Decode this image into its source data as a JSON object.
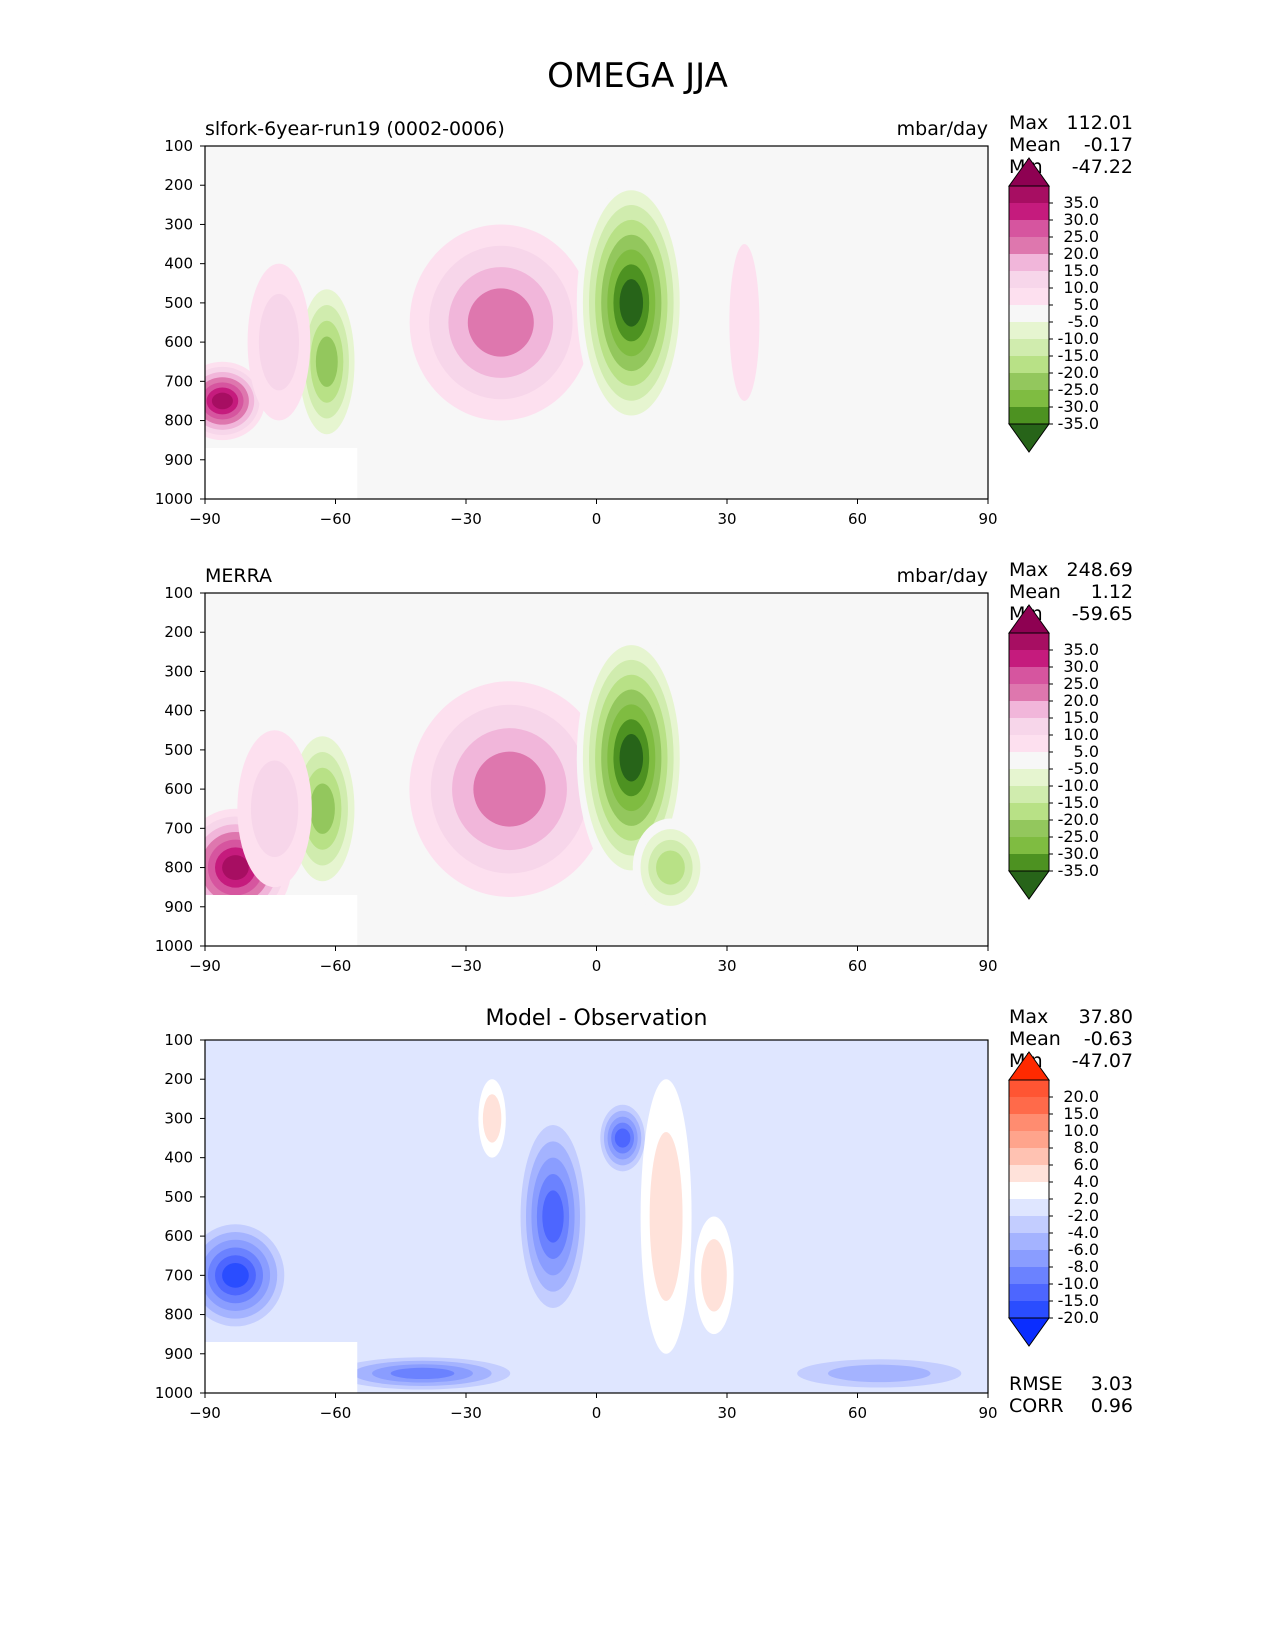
{
  "figure_title": "OMEGA JJA",
  "chart_data": [
    {
      "type": "heatmap",
      "title": "slfork-6year-run19 (0002-0006)",
      "units": "mbar/day",
      "xlim": [
        -90,
        90
      ],
      "ylim": [
        1000,
        100
      ],
      "x_ticks": [
        "−90",
        "−60",
        "−30",
        "0",
        "30",
        "60",
        "90"
      ],
      "y_ticks": [
        "100",
        "200",
        "300",
        "400",
        "500",
        "600",
        "700",
        "800",
        "900",
        "1000"
      ],
      "stats": [
        {
          "label": "Max",
          "value": "112.01"
        },
        {
          "label": "Mean",
          "value": "-0.17"
        },
        {
          "label": "Min",
          "value": "-47.22"
        }
      ],
      "colorbar": {
        "labels": [
          "35.0",
          "30.0",
          "25.0",
          "20.0",
          "15.0",
          "10.0",
          "5.0",
          "-5.0",
          "-10.0",
          "-15.0",
          "-20.0",
          "-25.0",
          "-30.0",
          "-35.0"
        ],
        "colors": [
          "#8e0152",
          "#a70e62",
          "#c51b7d",
          "#d6559f",
          "#de77ae",
          "#f1b6da",
          "#f7d6ea",
          "#fde0ef",
          "#f7f7f7",
          "#e6f5d0",
          "#d0ecae",
          "#b8e186",
          "#93c75d",
          "#7fbc41",
          "#4d9221",
          "#276419"
        ]
      },
      "features": [
        {
          "lat": -22,
          "p": 550,
          "w": 10,
          "h": 500,
          "value": 20
        },
        {
          "lat": 8,
          "p": 500,
          "w": 3.5,
          "h": 650,
          "value": -35
        },
        {
          "lat": -62,
          "p": 650,
          "w": 3,
          "h": 450,
          "value": -20
        },
        {
          "lat": -86,
          "p": 750,
          "w": 3,
          "h": 200,
          "value": 35
        },
        {
          "lat": 34,
          "p": 550,
          "w": 3,
          "h": 400,
          "value": 5
        },
        {
          "lat": -73,
          "p": 600,
          "w": 5,
          "h": 400,
          "value": 10
        }
      ]
    },
    {
      "type": "heatmap",
      "title": "MERRA",
      "units": "mbar/day",
      "xlim": [
        -90,
        90
      ],
      "ylim": [
        1000,
        100
      ],
      "x_ticks": [
        "−90",
        "−60",
        "−30",
        "0",
        "30",
        "60",
        "90"
      ],
      "y_ticks": [
        "100",
        "200",
        "300",
        "400",
        "500",
        "600",
        "700",
        "800",
        "900",
        "1000"
      ],
      "stats": [
        {
          "label": "Max",
          "value": "248.69"
        },
        {
          "label": "Mean",
          "value": "1.12"
        },
        {
          "label": "Min",
          "value": "-59.65"
        }
      ],
      "colorbar": {
        "labels": [
          "35.0",
          "30.0",
          "25.0",
          "20.0",
          "15.0",
          "10.0",
          "5.0",
          "-5.0",
          "-10.0",
          "-15.0",
          "-20.0",
          "-25.0",
          "-30.0",
          "-35.0"
        ],
        "colors": [
          "#8e0152",
          "#a70e62",
          "#c51b7d",
          "#d6559f",
          "#de77ae",
          "#f1b6da",
          "#f7d6ea",
          "#fde0ef",
          "#f7f7f7",
          "#e6f5d0",
          "#d0ecae",
          "#b8e186",
          "#93c75d",
          "#7fbc41",
          "#4d9221",
          "#276419"
        ]
      },
      "features": [
        {
          "lat": -20,
          "p": 600,
          "w": 11,
          "h": 550,
          "value": 22
        },
        {
          "lat": 8,
          "p": 520,
          "w": 3.5,
          "h": 650,
          "value": -35
        },
        {
          "lat": -63,
          "p": 650,
          "w": 3.5,
          "h": 450,
          "value": -22
        },
        {
          "lat": -83,
          "p": 800,
          "w": 4,
          "h": 300,
          "value": 35
        },
        {
          "lat": -74,
          "p": 650,
          "w": 6,
          "h": 400,
          "value": 12
        },
        {
          "lat": 17,
          "p": 800,
          "w": 4,
          "h": 250,
          "value": -15
        }
      ]
    },
    {
      "type": "heatmap",
      "title": "Model - Observation",
      "units": "",
      "xlim": [
        -90,
        90
      ],
      "ylim": [
        1000,
        100
      ],
      "x_ticks": [
        "−90",
        "−60",
        "−30",
        "0",
        "30",
        "60",
        "90"
      ],
      "y_ticks": [
        "100",
        "200",
        "300",
        "400",
        "500",
        "600",
        "700",
        "800",
        "900",
        "1000"
      ],
      "stats": [
        {
          "label": "Max",
          "value": "37.80"
        },
        {
          "label": "Mean",
          "value": "-0.63"
        },
        {
          "label": "Min",
          "value": "-47.07"
        }
      ],
      "extra_stats": [
        {
          "label": "RMSE",
          "value": "3.03"
        },
        {
          "label": "CORR",
          "value": "0.96"
        }
      ],
      "colorbar": {
        "labels": [
          "20.0",
          "15.0",
          "10.0",
          "8.0",
          "6.0",
          "4.0",
          "2.0",
          "-2.0",
          "-4.0",
          "-6.0",
          "-8.0",
          "-10.0",
          "-15.0",
          "-20.0"
        ],
        "colors": [
          "#ff2a00",
          "#ff5533",
          "#ff6a4a",
          "#ff8c70",
          "#ffa48c",
          "#ffc2b2",
          "#ffe2da",
          "#ffffff",
          "#dfe6ff",
          "#c3cdff",
          "#a4b3ff",
          "#8a9dff",
          "#6b82ff",
          "#4d66ff",
          "#2a4dff",
          "#0a2dff"
        ]
      },
      "features": [
        {
          "lat": -10,
          "p": 550,
          "w": 3,
          "h": 550,
          "value": -10
        },
        {
          "lat": 6,
          "p": 350,
          "w": 2,
          "h": 200,
          "value": -10
        },
        {
          "lat": 16,
          "p": 550,
          "w": 4,
          "h": 700,
          "value": 5
        },
        {
          "lat": -83,
          "p": 700,
          "w": 4,
          "h": 300,
          "value": -15
        },
        {
          "lat": -40,
          "p": 950,
          "w": 10,
          "h": 100,
          "value": -8
        },
        {
          "lat": -24,
          "p": 300,
          "w": 2,
          "h": 200,
          "value": 4
        },
        {
          "lat": 27,
          "p": 700,
          "w": 3,
          "h": 300,
          "value": 4
        },
        {
          "lat": 65,
          "p": 950,
          "w": 15,
          "h": 100,
          "value": -4
        }
      ]
    }
  ]
}
